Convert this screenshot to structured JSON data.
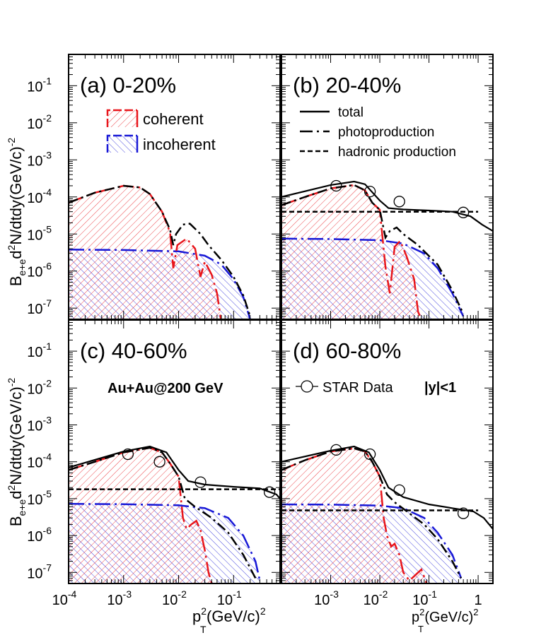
{
  "chart_data": {
    "type": "line",
    "title": "",
    "xlabel_main": "p",
    "xlabel_sub": "T",
    "xlabel_sup": "2",
    "xlabel_rest": "(GeV/c)",
    "xlabel_rest_sup": "2",
    "ylabel_main": "B",
    "ylabel_sub": "e+e",
    "ylabel_rest": "d",
    "ylabel_sup2": "2",
    "ylabel_tail": "N/dtdy(GeV/c)",
    "ylabel_tailsup": "-2",
    "xscale": "log",
    "yscale": "log",
    "xlim_left": [
      0.0001,
      0.7
    ],
    "xlim_right": [
      0.0001,
      2.0
    ],
    "ylim": [
      5e-08,
      0.7
    ],
    "y_ticks": [
      {
        "value": 1e-07,
        "label": "10",
        "exp": "-7"
      },
      {
        "value": 1e-06,
        "label": "10",
        "exp": "-6"
      },
      {
        "value": 1e-05,
        "label": "10",
        "exp": "-5"
      },
      {
        "value": 0.0001,
        "label": "10",
        "exp": "-4"
      },
      {
        "value": 0.001,
        "label": "10",
        "exp": "-3"
      },
      {
        "value": 0.01,
        "label": "10",
        "exp": "-2"
      },
      {
        "value": 0.1,
        "label": "10",
        "exp": "-1"
      }
    ],
    "x_ticks_left": [
      {
        "value": 0.0001,
        "label": "10",
        "exp": "-4"
      },
      {
        "value": 0.001,
        "label": "10",
        "exp": "-3"
      },
      {
        "value": 0.01,
        "label": "10",
        "exp": "-2"
      },
      {
        "value": 0.1,
        "label": "10",
        "exp": "-1"
      }
    ],
    "x_ticks_right": [
      {
        "value": 0.001,
        "label": "10",
        "exp": "-3"
      },
      {
        "value": 0.01,
        "label": "10",
        "exp": "-2"
      },
      {
        "value": 0.1,
        "label": "10",
        "exp": "-1"
      },
      {
        "value": 1,
        "label": "1",
        "exp": ""
      }
    ],
    "legend_fill": [
      {
        "name": "coherent",
        "color": "#e8151b"
      },
      {
        "name": "incoherent",
        "color": "#1717d6"
      }
    ],
    "legend_lines": [
      {
        "name": "total",
        "style": "solid"
      },
      {
        "name": "photoproduction",
        "style": "dashdot"
      },
      {
        "name": "hadronic production",
        "style": "dashed"
      }
    ],
    "legend_data": {
      "name": "STAR Data",
      "rapidity": "|y|<1"
    },
    "collision_label": "Au+Au@200 GeV",
    "panels": [
      {
        "label": "(a) 0-20%",
        "coherent": [
          [
            0.0001,
            7e-05
          ],
          [
            0.0003,
            0.00013
          ],
          [
            0.001,
            0.0002
          ],
          [
            0.002,
            0.00018
          ],
          [
            0.003,
            0.00012
          ],
          [
            0.005,
            4e-05
          ],
          [
            0.007,
            1.1e-05
          ],
          [
            0.008,
            1.2e-06
          ],
          [
            0.0095,
            5e-06
          ],
          [
            0.014,
            7.5e-06
          ],
          [
            0.02,
            4e-06
          ],
          [
            0.025,
            7e-07
          ],
          [
            0.03,
            1.8e-06
          ],
          [
            0.04,
            8e-07
          ],
          [
            0.05,
            2.5e-07
          ],
          [
            0.06,
            4e-08
          ]
        ],
        "incoherent": [
          [
            0.0001,
            3.8e-06
          ],
          [
            0.001,
            3.7e-06
          ],
          [
            0.01,
            3.4e-06
          ],
          [
            0.03,
            2.6e-06
          ],
          [
            0.06,
            1.5e-06
          ],
          [
            0.1,
            6e-07
          ],
          [
            0.15,
            2e-07
          ],
          [
            0.2,
            5e-08
          ]
        ],
        "photo": [
          [
            0.0001,
            7e-05
          ],
          [
            0.0003,
            0.00013
          ],
          [
            0.001,
            0.0002
          ],
          [
            0.002,
            0.00018
          ],
          [
            0.003,
            0.00012
          ],
          [
            0.005,
            4e-05
          ],
          [
            0.007,
            1.3e-05
          ],
          [
            0.008,
            5e-06
          ],
          [
            0.009,
            1e-05
          ],
          [
            0.012,
            1.8e-05
          ],
          [
            0.016,
            1.9e-05
          ],
          [
            0.025,
            1e-05
          ],
          [
            0.035,
            5e-06
          ],
          [
            0.06,
            2e-06
          ],
          [
            0.1,
            7e-07
          ],
          [
            0.15,
            2.2e-07
          ],
          [
            0.2,
            6e-08
          ]
        ],
        "hadronic": null,
        "total": null,
        "data": []
      },
      {
        "label": "(b) 20-40%",
        "coherent": [
          [
            0.0001,
            6e-05
          ],
          [
            0.0003,
            0.0001
          ],
          [
            0.001,
            0.00017
          ],
          [
            0.003,
            0.00021
          ],
          [
            0.005,
            0.00015
          ],
          [
            0.007,
            7e-05
          ],
          [
            0.01,
            4.5e-05
          ],
          [
            0.013,
            1.3e-06
          ],
          [
            0.016,
            2.5e-07
          ],
          [
            0.02,
            4.5e-06
          ],
          [
            0.026,
            6.5e-06
          ],
          [
            0.035,
            2.5e-06
          ],
          [
            0.05,
            6e-07
          ],
          [
            0.06,
            8e-08
          ],
          [
            0.07,
            5e-08
          ]
        ],
        "incoherent": [
          [
            0.0001,
            7.5e-06
          ],
          [
            0.001,
            7.3e-06
          ],
          [
            0.01,
            6.8e-06
          ],
          [
            0.03,
            5.5e-06
          ],
          [
            0.08,
            3e-06
          ],
          [
            0.15,
            1.2e-06
          ],
          [
            0.3,
            2.5e-07
          ],
          [
            0.5,
            6e-08
          ]
        ],
        "photo": [
          [
            0.0001,
            6e-05
          ],
          [
            0.0003,
            0.0001
          ],
          [
            0.001,
            0.00017
          ],
          [
            0.003,
            0.00021
          ],
          [
            0.005,
            0.00015
          ],
          [
            0.007,
            7e-05
          ],
          [
            0.01,
            4.5e-05
          ],
          [
            0.013,
            8e-06
          ],
          [
            0.016,
            1.2e-05
          ],
          [
            0.022,
            1.5e-05
          ],
          [
            0.03,
            1e-05
          ],
          [
            0.06,
            5e-06
          ],
          [
            0.15,
            1.5e-06
          ],
          [
            0.3,
            3e-07
          ],
          [
            0.5,
            7e-08
          ]
        ],
        "hadronic": [
          [
            0.0001,
            4e-05
          ],
          [
            0.2,
            4e-05
          ],
          [
            1,
            4e-05
          ]
        ],
        "total": [
          [
            0.0001,
            0.0001
          ],
          [
            0.001,
            0.00021
          ],
          [
            0.003,
            0.00026
          ],
          [
            0.005,
            0.00022
          ],
          [
            0.01,
            8e-05
          ],
          [
            0.015,
            5e-05
          ],
          [
            0.03,
            4.6e-05
          ],
          [
            0.1,
            4.3e-05
          ],
          [
            0.3,
            4e-05
          ],
          [
            0.7,
            3e-05
          ],
          [
            1.2,
            1.8e-05
          ],
          [
            2,
            1.2e-05
          ]
        ],
        "data": [
          [
            0.0013,
            0.0002
          ],
          [
            0.0063,
            0.00014
          ],
          [
            0.025,
            7.5e-05
          ],
          [
            0.5,
            3.8e-05
          ]
        ]
      },
      {
        "label": "(c) 40-60%",
        "coherent": [
          [
            0.0001,
            6e-05
          ],
          [
            0.0003,
            0.0001
          ],
          [
            0.001,
            0.00018
          ],
          [
            0.003,
            0.00024
          ],
          [
            0.005,
            0.00018
          ],
          [
            0.007,
            9e-05
          ],
          [
            0.01,
            4e-05
          ],
          [
            0.012,
            3e-06
          ],
          [
            0.014,
            1.5e-06
          ],
          [
            0.017,
            2e-06
          ],
          [
            0.021,
            2.5e-06
          ],
          [
            0.025,
            1.4e-06
          ],
          [
            0.03,
            4e-07
          ],
          [
            0.035,
            1e-07
          ],
          [
            0.04,
            5e-08
          ]
        ],
        "incoherent": [
          [
            0.0001,
            7.2e-06
          ],
          [
            0.001,
            7.1e-06
          ],
          [
            0.01,
            6.6e-06
          ],
          [
            0.03,
            5.5e-06
          ],
          [
            0.08,
            3e-06
          ],
          [
            0.15,
            1e-06
          ],
          [
            0.25,
            2e-07
          ],
          [
            0.3,
            6e-08
          ]
        ],
        "photo": [
          [
            0.0001,
            6e-05
          ],
          [
            0.0003,
            0.0001
          ],
          [
            0.001,
            0.00018
          ],
          [
            0.003,
            0.00024
          ],
          [
            0.005,
            0.00018
          ],
          [
            0.007,
            9e-05
          ],
          [
            0.01,
            4e-05
          ],
          [
            0.013,
            1e-05
          ],
          [
            0.02,
            6e-06
          ],
          [
            0.04,
            3e-06
          ],
          [
            0.08,
            1.2e-06
          ],
          [
            0.15,
            3e-07
          ],
          [
            0.25,
            7e-08
          ]
        ],
        "hadronic": [
          [
            0.0001,
            1.8e-05
          ],
          [
            0.1,
            1.8e-05
          ],
          [
            0.7,
            1.8e-05
          ]
        ],
        "total": [
          [
            0.0001,
            7e-05
          ],
          [
            0.001,
            0.00019
          ],
          [
            0.003,
            0.00026
          ],
          [
            0.006,
            0.00018
          ],
          [
            0.01,
            6e-05
          ],
          [
            0.015,
            3e-05
          ],
          [
            0.03,
            2.4e-05
          ],
          [
            0.1,
            2.1e-05
          ],
          [
            0.3,
            1.9e-05
          ],
          [
            0.6,
            1.3e-05
          ],
          [
            0.7,
            1e-05
          ]
        ],
        "data": [
          [
            0.0012,
            0.00016
          ],
          [
            0.0045,
            0.0001
          ],
          [
            0.025,
            2.8e-05
          ],
          [
            0.45,
            1.5e-05
          ]
        ]
      },
      {
        "label": "(d) 60-80%",
        "coherent": [
          [
            0.0001,
            6e-05
          ],
          [
            0.0003,
            0.00011
          ],
          [
            0.001,
            0.00019
          ],
          [
            0.003,
            0.00023
          ],
          [
            0.005,
            0.00019
          ],
          [
            0.007,
            0.0001
          ],
          [
            0.01,
            4e-05
          ],
          [
            0.012,
            3e-06
          ],
          [
            0.014,
            1e-06
          ],
          [
            0.017,
            5e-07
          ],
          [
            0.02,
            6e-07
          ],
          [
            0.025,
            3e-07
          ],
          [
            0.03,
            1e-07
          ],
          [
            0.04,
            6e-08
          ],
          [
            0.07,
            1.2e-07
          ],
          [
            0.09,
            5e-08
          ]
        ],
        "incoherent": [
          [
            0.0001,
            7e-06
          ],
          [
            0.001,
            6.9e-06
          ],
          [
            0.01,
            6.5e-06
          ],
          [
            0.03,
            5.5e-06
          ],
          [
            0.08,
            3e-06
          ],
          [
            0.15,
            1.2e-06
          ],
          [
            0.3,
            3e-07
          ],
          [
            0.45,
            7e-08
          ]
        ],
        "photo": [
          [
            0.0001,
            6e-05
          ],
          [
            0.0003,
            0.00011
          ],
          [
            0.001,
            0.00019
          ],
          [
            0.003,
            0.00023
          ],
          [
            0.005,
            0.00019
          ],
          [
            0.007,
            0.0001
          ],
          [
            0.01,
            4e-05
          ],
          [
            0.014,
            1.3e-05
          ],
          [
            0.02,
            8e-06
          ],
          [
            0.04,
            4e-06
          ],
          [
            0.08,
            2e-06
          ],
          [
            0.15,
            8e-07
          ],
          [
            0.3,
            2e-07
          ],
          [
            0.45,
            7e-08
          ]
        ],
        "hadronic": [
          [
            0.0001,
            4.8e-06
          ],
          [
            0.1,
            4.8e-06
          ],
          [
            1,
            4.8e-06
          ]
        ],
        "total": [
          [
            0.0001,
            0.0001
          ],
          [
            0.001,
            0.0002
          ],
          [
            0.003,
            0.00026
          ],
          [
            0.006,
            0.00018
          ],
          [
            0.01,
            6e-05
          ],
          [
            0.015,
            2e-05
          ],
          [
            0.03,
            1.1e-05
          ],
          [
            0.1,
            7e-06
          ],
          [
            0.3,
            5.5e-06
          ],
          [
            0.8,
            4.5e-06
          ],
          [
            1.3,
            3e-06
          ],
          [
            2,
            1.5e-06
          ]
        ],
        "data": [
          [
            0.0013,
            0.00021
          ],
          [
            0.0063,
            0.00016
          ],
          [
            0.025,
            1.7e-05
          ],
          [
            0.5,
            4e-06
          ]
        ]
      }
    ]
  }
}
